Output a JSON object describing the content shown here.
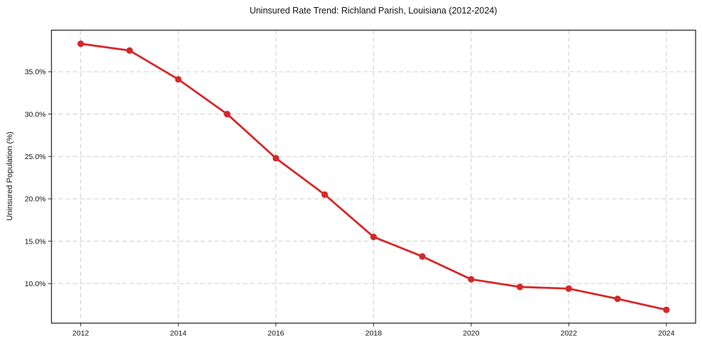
{
  "chart_data": {
    "type": "line",
    "title": "Uninsured Rate Trend: Richland Parish, Louisiana (2012-2024)",
    "xlabel": "",
    "ylabel": "Uninsured Population (%)",
    "x": [
      2012,
      2013,
      2014,
      2015,
      2016,
      2017,
      2018,
      2019,
      2020,
      2021,
      2022,
      2023,
      2024
    ],
    "values": [
      38.3,
      37.5,
      34.1,
      30.0,
      24.8,
      20.5,
      15.5,
      13.2,
      10.5,
      9.6,
      9.4,
      8.2,
      6.9
    ],
    "x_ticks": [
      2012,
      2014,
      2016,
      2018,
      2020,
      2022,
      2024
    ],
    "x_tick_labels": [
      "2012",
      "2014",
      "2016",
      "2018",
      "2020",
      "2022",
      "2024"
    ],
    "y_ticks": [
      10,
      15,
      20,
      25,
      30,
      35
    ],
    "y_tick_labels": [
      "10.0%",
      "15.0%",
      "20.0%",
      "25.0%",
      "30.0%",
      "35.0%"
    ],
    "xlim": [
      2011.4,
      2024.6
    ],
    "ylim": [
      5.33,
      39.9
    ],
    "grid": true,
    "grid_style": "dashed",
    "legend": null,
    "marker": "circle",
    "colors": {
      "line": "#d62728",
      "marker": "#d62728",
      "grid": "#cccccc",
      "spine": "#2b2b2b",
      "tick": "#2b2b2b",
      "text": "#111111",
      "background": "#ffffff"
    }
  }
}
